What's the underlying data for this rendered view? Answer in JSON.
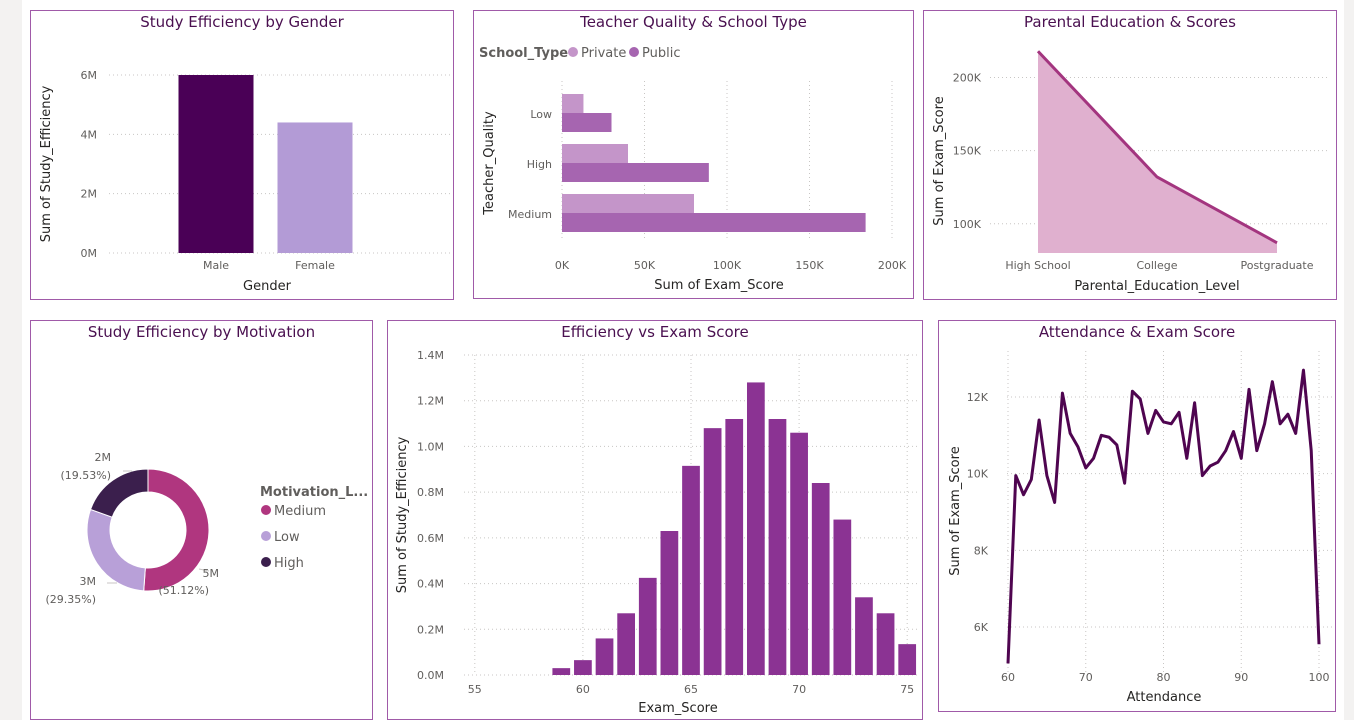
{
  "colors": {
    "dark_purple": "#4a0056",
    "light_purple": "#b39bd6",
    "private": "#c495c9",
    "public": "#a665b0",
    "area_fill": "#e0b0cf",
    "area_line": "#a3357f",
    "bar_purple": "#8b3393",
    "donut_medium": "#b0367f",
    "donut_low": "#b8a0d8",
    "donut_high": "#3b1f4d",
    "line_purple": "#4f0550"
  },
  "chart_data": [
    {
      "type": "bar",
      "title": "Study Efficiency by Gender",
      "xlabel": "Gender",
      "ylabel": "Sum of Study_Efficiency",
      "categories": [
        "Male",
        "Female"
      ],
      "values": [
        6000000,
        4400000
      ],
      "ylim": [
        0,
        6000000
      ],
      "yticks": [
        {
          "v": 0,
          "label": "0M"
        },
        {
          "v": 2000000,
          "label": "2M"
        },
        {
          "v": 4000000,
          "label": "4M"
        },
        {
          "v": 6000000,
          "label": "6M"
        }
      ]
    },
    {
      "type": "bar",
      "orientation": "horizontal",
      "title": "Teacher Quality & School Type",
      "xlabel": "Sum of Exam_Score",
      "ylabel": "Teacher_Quality",
      "legend_title": "School_Type",
      "categories": [
        "Low",
        "High",
        "Medium"
      ],
      "series": [
        {
          "name": "Private",
          "values": [
            13000,
            40000,
            80000
          ]
        },
        {
          "name": "Public",
          "values": [
            30000,
            89000,
            184000
          ]
        }
      ],
      "xlim": [
        0,
        200000
      ],
      "xticks": [
        {
          "v": 0,
          "label": "0K"
        },
        {
          "v": 50000,
          "label": "50K"
        },
        {
          "v": 100000,
          "label": "100K"
        },
        {
          "v": 150000,
          "label": "150K"
        },
        {
          "v": 200000,
          "label": "200K"
        }
      ]
    },
    {
      "type": "area",
      "title": "Parental Education & Scores",
      "xlabel": "Parental_Education_Level",
      "ylabel": "Sum of Exam_Score",
      "categories": [
        "High School",
        "College",
        "Postgraduate"
      ],
      "values": [
        218000,
        132000,
        87000
      ],
      "ylim": [
        80000,
        225000
      ],
      "yticks": [
        {
          "v": 100000,
          "label": "100K"
        },
        {
          "v": 150000,
          "label": "150K"
        },
        {
          "v": 200000,
          "label": "200K"
        }
      ]
    },
    {
      "type": "pie",
      "title": "Study Efficiency by Motivation",
      "legend_title": "Motivation_L...",
      "slices": [
        {
          "name": "Medium",
          "value": 5,
          "value_label": "5M",
          "percent": 51.12,
          "percent_label": "(51.12%)"
        },
        {
          "name": "Low",
          "value": 3,
          "value_label": "3M",
          "percent": 29.35,
          "percent_label": "(29.35%)"
        },
        {
          "name": "High",
          "value": 2,
          "value_label": "2M",
          "percent": 19.53,
          "percent_label": "(19.53%)"
        }
      ]
    },
    {
      "type": "bar",
      "title": "Efficiency vs Exam Score",
      "xlabel": "Exam_Score",
      "ylabel": "Sum of Study_Efficiency",
      "x": [
        59,
        60,
        61,
        62,
        63,
        64,
        65,
        66,
        67,
        68,
        69,
        70,
        71,
        72,
        73,
        74,
        75
      ],
      "values": [
        30000,
        65000,
        160000,
        270000,
        425000,
        630000,
        915000,
        1080000,
        1120000,
        1280000,
        1120000,
        1060000,
        840000,
        680000,
        340000,
        270000,
        135000
      ],
      "xlim": [
        54.5,
        75.5
      ],
      "ylim": [
        0,
        1400000
      ],
      "xticks": [
        {
          "v": 55,
          "label": "55"
        },
        {
          "v": 60,
          "label": "60"
        },
        {
          "v": 65,
          "label": "65"
        },
        {
          "v": 70,
          "label": "70"
        },
        {
          "v": 75,
          "label": "75"
        }
      ],
      "yticks": [
        {
          "v": 0,
          "label": "0.0M"
        },
        {
          "v": 200000,
          "label": "0.2M"
        },
        {
          "v": 400000,
          "label": "0.4M"
        },
        {
          "v": 600000,
          "label": "0.6M"
        },
        {
          "v": 800000,
          "label": "0.8M"
        },
        {
          "v": 1000000,
          "label": "1.0M"
        },
        {
          "v": 1200000,
          "label": "1.2M"
        },
        {
          "v": 1400000,
          "label": "1.4M"
        }
      ]
    },
    {
      "type": "line",
      "title": "Attendance & Exam Score",
      "xlabel": "Attendance",
      "ylabel": "Sum of Exam_Score",
      "x": [
        60,
        61,
        62,
        63,
        64,
        65,
        66,
        67,
        68,
        69,
        70,
        71,
        72,
        73,
        74,
        75,
        76,
        77,
        78,
        79,
        80,
        81,
        82,
        83,
        84,
        85,
        86,
        87,
        88,
        89,
        90,
        91,
        92,
        93,
        94,
        95,
        96,
        97,
        98,
        99,
        100
      ],
      "values": [
        5050,
        9950,
        9450,
        9850,
        11400,
        9950,
        9250,
        12100,
        11050,
        10700,
        10150,
        10400,
        11000,
        10950,
        10750,
        9750,
        12150,
        11950,
        11050,
        11650,
        11350,
        11300,
        11600,
        10400,
        11850,
        9950,
        10200,
        10300,
        10600,
        11100,
        10400,
        12200,
        10600,
        11300,
        12400,
        11300,
        11550,
        11050,
        12700,
        10600,
        5550
      ],
      "xlim": [
        59,
        101
      ],
      "ylim": [
        4800,
        13200
      ],
      "xticks": [
        {
          "v": 60,
          "label": "60"
        },
        {
          "v": 70,
          "label": "70"
        },
        {
          "v": 80,
          "label": "80"
        },
        {
          "v": 90,
          "label": "90"
        },
        {
          "v": 100,
          "label": "100"
        }
      ],
      "yticks": [
        {
          "v": 6000,
          "label": "6K"
        },
        {
          "v": 8000,
          "label": "8K"
        },
        {
          "v": 10000,
          "label": "10K"
        },
        {
          "v": 12000,
          "label": "12K"
        }
      ]
    }
  ]
}
